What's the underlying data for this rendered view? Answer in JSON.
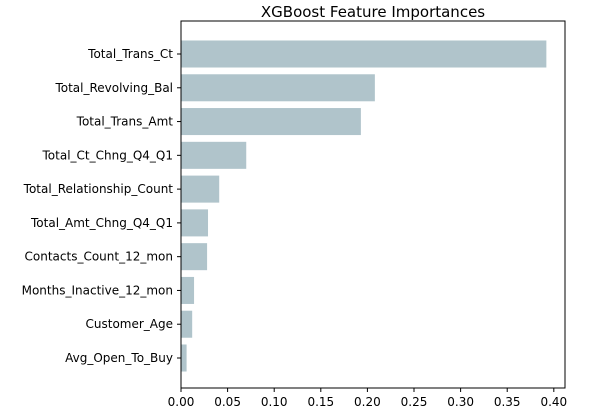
{
  "chart_data": {
    "type": "bar",
    "orientation": "horizontal",
    "title": "XGBoost Feature Importances",
    "xlabel": "",
    "ylabel": "",
    "categories": [
      "Total_Trans_Ct",
      "Total_Revolving_Bal",
      "Total_Trans_Amt",
      "Total_Ct_Chng_Q4_Q1",
      "Total_Relationship_Count",
      "Total_Amt_Chng_Q4_Q1",
      "Contacts_Count_12_mon",
      "Months_Inactive_12_mon",
      "Customer_Age",
      "Avg_Open_To_Buy"
    ],
    "values": [
      0.392,
      0.208,
      0.193,
      0.07,
      0.041,
      0.029,
      0.028,
      0.014,
      0.012,
      0.006
    ],
    "xlim": [
      0.0,
      0.412
    ],
    "xticks": [
      0.0,
      0.05,
      0.1,
      0.15,
      0.2,
      0.25,
      0.3,
      0.35,
      0.4
    ],
    "xtick_labels": [
      "0.00",
      "0.05",
      "0.10",
      "0.15",
      "0.20",
      "0.25",
      "0.30",
      "0.35",
      "0.40"
    ],
    "bar_color": "#b0c4cb",
    "grid": false,
    "legend": "none"
  }
}
